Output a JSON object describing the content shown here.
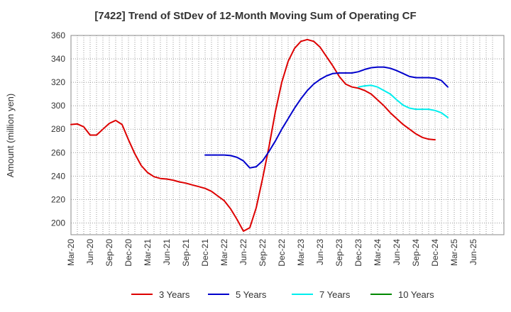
{
  "chart_data": {
    "type": "line",
    "title": "[7422]  Trend of StDev of 12-Month Moving Sum of Operating CF",
    "ylabel": "Amount (million yen)",
    "xlabel": "",
    "ylim": [
      190,
      360
    ],
    "yticks": [
      200,
      220,
      240,
      260,
      280,
      300,
      320,
      340,
      360
    ],
    "grid": true,
    "legend_position": "bottom",
    "x_start": "Mar-20",
    "x_tick_labels": [
      "Mar-20",
      "Jun-20",
      "Sep-20",
      "Dec-20",
      "Mar-21",
      "Jun-21",
      "Sep-21",
      "Dec-21",
      "Mar-22",
      "Jun-22",
      "Sep-22",
      "Dec-22",
      "Mar-23",
      "Jun-23",
      "Sep-23",
      "Dec-23",
      "Mar-24",
      "Jun-24",
      "Sep-24",
      "Dec-24",
      "Mar-25",
      "Jun-25"
    ],
    "x_months": [
      "Mar-20",
      "Apr-20",
      "May-20",
      "Jun-20",
      "Jul-20",
      "Aug-20",
      "Sep-20",
      "Oct-20",
      "Nov-20",
      "Dec-20",
      "Jan-21",
      "Feb-21",
      "Mar-21",
      "Apr-21",
      "May-21",
      "Jun-21",
      "Jul-21",
      "Aug-21",
      "Sep-21",
      "Oct-21",
      "Nov-21",
      "Dec-21",
      "Jan-22",
      "Feb-22",
      "Mar-22",
      "Apr-22",
      "May-22",
      "Jun-22",
      "Jul-22",
      "Aug-22",
      "Sep-22",
      "Oct-22",
      "Nov-22",
      "Dec-22",
      "Jan-23",
      "Feb-23",
      "Mar-23",
      "Apr-23",
      "May-23",
      "Jun-23",
      "Jul-23",
      "Aug-23",
      "Sep-23",
      "Oct-23",
      "Nov-23",
      "Dec-23",
      "Jan-24",
      "Feb-24",
      "Mar-24",
      "Apr-24",
      "May-24",
      "Jun-24",
      "Jul-24",
      "Aug-24",
      "Sep-24",
      "Oct-24",
      "Nov-24",
      "Dec-24",
      "Jan-25",
      "Feb-25",
      "Mar-25",
      "Apr-25",
      "May-25",
      "Jun-25",
      "Jul-25",
      "Aug-25",
      "Sep-25"
    ],
    "series": [
      {
        "name": "3 Years",
        "color": "#dd0000",
        "values": [
          284,
          284.5,
          282,
          275,
          275,
          280,
          285,
          287.5,
          284,
          271,
          259,
          249,
          243,
          239.5,
          238,
          237.5,
          236.5,
          235,
          234,
          232.5,
          231,
          229.5,
          227,
          223,
          219,
          212,
          203,
          193,
          196,
          213,
          238,
          265,
          295,
          320,
          338,
          349,
          355,
          356.5,
          355,
          350,
          342,
          334,
          325,
          318.5,
          316,
          315,
          313,
          310,
          305,
          300,
          294,
          289,
          284,
          280,
          276,
          273,
          271.5,
          271
        ]
      },
      {
        "name": "5 Years",
        "color": "#0000cc",
        "values": [
          null,
          null,
          null,
          null,
          null,
          null,
          null,
          null,
          null,
          null,
          null,
          null,
          null,
          null,
          null,
          null,
          null,
          null,
          null,
          null,
          null,
          258,
          258,
          258,
          258,
          257.5,
          256,
          253,
          247,
          248,
          253,
          261,
          270,
          280,
          289,
          298,
          306,
          313,
          318.5,
          322.5,
          325.5,
          327.5,
          328,
          328,
          328,
          329,
          331,
          332.5,
          333,
          333,
          332,
          330,
          327.5,
          325,
          324,
          324,
          324,
          323.5,
          321.5,
          316
        ]
      },
      {
        "name": "7 Years",
        "color": "#00eeee",
        "values": [
          null,
          null,
          null,
          null,
          null,
          null,
          null,
          null,
          null,
          null,
          null,
          null,
          null,
          null,
          null,
          null,
          null,
          null,
          null,
          null,
          null,
          null,
          null,
          null,
          null,
          null,
          null,
          null,
          null,
          null,
          null,
          null,
          null,
          null,
          null,
          null,
          null,
          null,
          null,
          null,
          null,
          null,
          null,
          null,
          null,
          316,
          317,
          317.5,
          316,
          313,
          310,
          305,
          300.5,
          298,
          297,
          297,
          297,
          296,
          294,
          290
        ]
      },
      {
        "name": "10 Years",
        "color": "#008800",
        "values": []
      }
    ]
  }
}
